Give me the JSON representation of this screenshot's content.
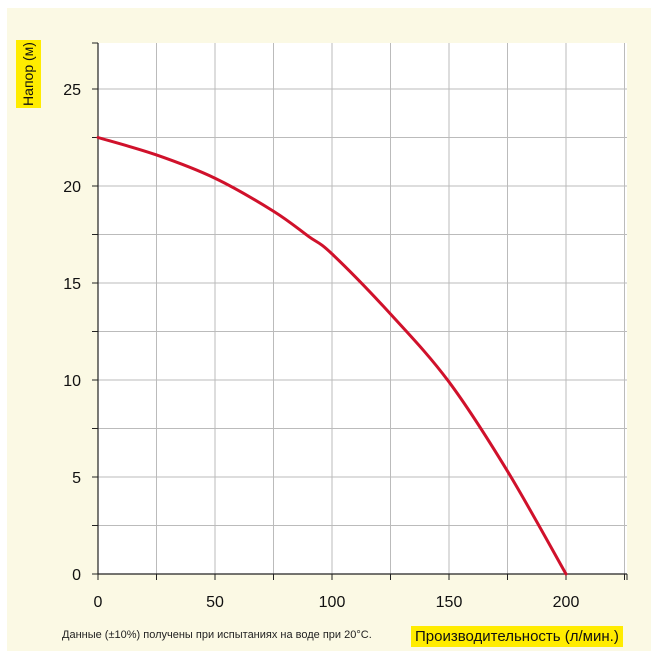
{
  "chart_data": {
    "type": "line",
    "xlabel": "Производительность (л/мин.)",
    "ylabel": "Напор (м)",
    "xlim": [
      0,
      226
    ],
    "ylim": [
      0,
      27.5
    ],
    "x_ticks": [
      0,
      50,
      100,
      150,
      200
    ],
    "y_ticks": [
      0,
      5,
      10,
      15,
      20,
      25
    ],
    "x_minor_step": 25,
    "y_minor_step": 2.5,
    "grid": true,
    "series": [
      {
        "color": "#d0112b",
        "x": [
          0,
          25,
          50,
          75,
          90,
          100,
          125,
          150,
          175,
          200
        ],
        "y": [
          22.5,
          21.6,
          20.4,
          18.7,
          17.4,
          16.5,
          13.4,
          9.9,
          5.3,
          0
        ]
      }
    ],
    "footnote": "Данные (±10%) получены при испытаниях на воде при 20°C."
  },
  "colors": {
    "panel_bg": "#fbf9e4",
    "label_highlight": "#ffec00",
    "grid": "#bbbbbb",
    "axis": "#222222"
  }
}
